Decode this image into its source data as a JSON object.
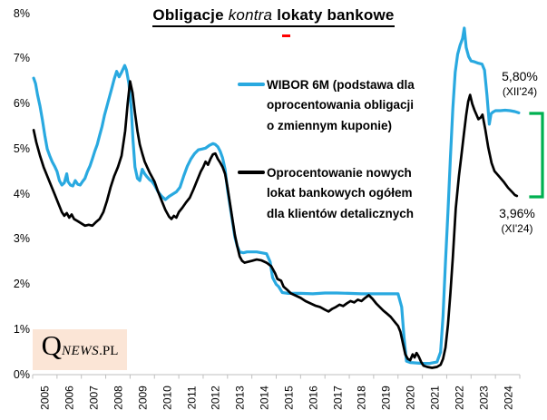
{
  "title": {
    "part1": "Obligacje",
    "part2": "kontra",
    "part3": "lokaty bankowe"
  },
  "legend": {
    "wibor": {
      "color": "#29A9E0",
      "label_lines": [
        "WIBOR 6M (podstawa dla",
        "oprocentowania obligacji",
        "o zmiennym kuponie)"
      ]
    },
    "deposits": {
      "color": "#000000",
      "label_lines": [
        "Oprocentowanie nowych",
        "lokat bankowych ogółem",
        "dla klientów detalicznych"
      ]
    }
  },
  "annotations": {
    "wibor_latest": {
      "value": "5,80%",
      "period": "(XII'24)"
    },
    "deposits_latest": {
      "value": "3,96%",
      "period": "(XI'24)"
    },
    "bracket_color": "#00B050"
  },
  "logo": {
    "q": "Q",
    "news": "NEWS",
    "suffix": ".PL",
    "background": "#FBE5D6"
  },
  "chart_data": {
    "type": "line",
    "title": "Obligacje kontra lokaty bankowe",
    "grid": false,
    "legend_position": "inside-top",
    "x_axis": {
      "labels": [
        "2005",
        "2006",
        "2007",
        "2008",
        "2009",
        "2010",
        "2011",
        "2012",
        "2013",
        "2014",
        "2015",
        "2016",
        "2017",
        "2018",
        "2019",
        "2020",
        "2021",
        "2022",
        "2023",
        "2024"
      ],
      "range": [
        2005,
        2025
      ]
    },
    "y_axis": {
      "labels": [
        "0%",
        "1%",
        "2%",
        "3%",
        "4%",
        "5%",
        "6%",
        "7%",
        "8%"
      ],
      "range": [
        0,
        8
      ],
      "unit": "%"
    },
    "axis_color": "#BFBFBF",
    "series": [
      {
        "name": "WIBOR 6M (podstawa dla oprocentowania obligacji o zmiennym kuponie)",
        "color": "#29A9E0",
        "last_value": 5.8,
        "points": [
          [
            2005.04,
            6.57
          ],
          [
            2005.12,
            6.45
          ],
          [
            2005.2,
            6.2
          ],
          [
            2005.3,
            5.95
          ],
          [
            2005.4,
            5.65
          ],
          [
            2005.5,
            5.3
          ],
          [
            2005.6,
            5.0
          ],
          [
            2005.7,
            4.85
          ],
          [
            2005.8,
            4.72
          ],
          [
            2005.9,
            4.62
          ],
          [
            2006.0,
            4.5
          ],
          [
            2006.1,
            4.3
          ],
          [
            2006.2,
            4.2
          ],
          [
            2006.3,
            4.25
          ],
          [
            2006.4,
            4.45
          ],
          [
            2006.45,
            4.28
          ],
          [
            2006.55,
            4.2
          ],
          [
            2006.65,
            4.18
          ],
          [
            2006.75,
            4.3
          ],
          [
            2006.85,
            4.22
          ],
          [
            2006.95,
            4.2
          ],
          [
            2007.05,
            4.28
          ],
          [
            2007.15,
            4.35
          ],
          [
            2007.25,
            4.5
          ],
          [
            2007.35,
            4.62
          ],
          [
            2007.45,
            4.78
          ],
          [
            2007.55,
            4.95
          ],
          [
            2007.65,
            5.1
          ],
          [
            2007.75,
            5.3
          ],
          [
            2007.85,
            5.5
          ],
          [
            2007.95,
            5.75
          ],
          [
            2008.05,
            5.95
          ],
          [
            2008.15,
            6.15
          ],
          [
            2008.25,
            6.35
          ],
          [
            2008.35,
            6.55
          ],
          [
            2008.45,
            6.72
          ],
          [
            2008.55,
            6.6
          ],
          [
            2008.65,
            6.7
          ],
          [
            2008.78,
            6.85
          ],
          [
            2008.85,
            6.75
          ],
          [
            2008.95,
            6.45
          ],
          [
            2009.05,
            5.9
          ],
          [
            2009.12,
            5.2
          ],
          [
            2009.2,
            4.6
          ],
          [
            2009.3,
            4.35
          ],
          [
            2009.4,
            4.3
          ],
          [
            2009.5,
            4.55
          ],
          [
            2009.6,
            4.45
          ],
          [
            2009.7,
            4.38
          ],
          [
            2009.8,
            4.32
          ],
          [
            2009.9,
            4.28
          ],
          [
            2010.0,
            4.2
          ],
          [
            2010.15,
            4.05
          ],
          [
            2010.3,
            3.95
          ],
          [
            2010.45,
            3.88
          ],
          [
            2010.6,
            3.95
          ],
          [
            2010.75,
            4.0
          ],
          [
            2010.9,
            4.05
          ],
          [
            2011.05,
            4.15
          ],
          [
            2011.2,
            4.4
          ],
          [
            2011.35,
            4.62
          ],
          [
            2011.5,
            4.78
          ],
          [
            2011.65,
            4.9
          ],
          [
            2011.8,
            4.98
          ],
          [
            2011.95,
            5.0
          ],
          [
            2012.1,
            5.02
          ],
          [
            2012.25,
            5.08
          ],
          [
            2012.4,
            5.12
          ],
          [
            2012.5,
            5.1
          ],
          [
            2012.6,
            5.05
          ],
          [
            2012.7,
            4.95
          ],
          [
            2012.8,
            4.8
          ],
          [
            2012.9,
            4.55
          ],
          [
            2013.0,
            4.1
          ],
          [
            2013.1,
            3.75
          ],
          [
            2013.2,
            3.4
          ],
          [
            2013.3,
            3.05
          ],
          [
            2013.4,
            2.85
          ],
          [
            2013.5,
            2.72
          ],
          [
            2013.65,
            2.7
          ],
          [
            2013.8,
            2.72
          ],
          [
            2014.0,
            2.72
          ],
          [
            2014.2,
            2.72
          ],
          [
            2014.4,
            2.7
          ],
          [
            2014.6,
            2.68
          ],
          [
            2014.75,
            2.5
          ],
          [
            2014.85,
            2.15
          ],
          [
            2015.0,
            2.0
          ],
          [
            2015.1,
            1.95
          ],
          [
            2015.25,
            1.82
          ],
          [
            2015.5,
            1.8
          ],
          [
            2016.0,
            1.8
          ],
          [
            2016.5,
            1.79
          ],
          [
            2017.0,
            1.81
          ],
          [
            2017.5,
            1.81
          ],
          [
            2018.0,
            1.8
          ],
          [
            2018.5,
            1.79
          ],
          [
            2019.0,
            1.79
          ],
          [
            2019.5,
            1.79
          ],
          [
            2020.0,
            1.79
          ],
          [
            2020.15,
            1.5
          ],
          [
            2020.25,
            0.8
          ],
          [
            2020.35,
            0.3
          ],
          [
            2020.5,
            0.27
          ],
          [
            2020.75,
            0.26
          ],
          [
            2021.0,
            0.25
          ],
          [
            2021.3,
            0.25
          ],
          [
            2021.6,
            0.28
          ],
          [
            2021.75,
            0.5
          ],
          [
            2021.85,
            1.3
          ],
          [
            2021.95,
            2.5
          ],
          [
            2022.05,
            3.6
          ],
          [
            2022.15,
            4.8
          ],
          [
            2022.25,
            5.9
          ],
          [
            2022.35,
            6.7
          ],
          [
            2022.45,
            7.1
          ],
          [
            2022.55,
            7.3
          ],
          [
            2022.65,
            7.45
          ],
          [
            2022.72,
            7.68
          ],
          [
            2022.8,
            7.25
          ],
          [
            2022.9,
            7.05
          ],
          [
            2023.0,
            6.95
          ],
          [
            2023.15,
            6.93
          ],
          [
            2023.3,
            6.9
          ],
          [
            2023.45,
            6.88
          ],
          [
            2023.55,
            6.75
          ],
          [
            2023.65,
            6.2
          ],
          [
            2023.75,
            5.55
          ],
          [
            2023.82,
            5.78
          ],
          [
            2023.9,
            5.82
          ],
          [
            2024.0,
            5.85
          ],
          [
            2024.2,
            5.85
          ],
          [
            2024.4,
            5.86
          ],
          [
            2024.6,
            5.85
          ],
          [
            2024.8,
            5.83
          ],
          [
            2024.96,
            5.8
          ]
        ]
      },
      {
        "name": "Oprocentowanie nowych lokat bankowych ogółem dla klientów detalicznych",
        "color": "#000000",
        "last_value": 3.96,
        "points": [
          [
            2005.04,
            5.42
          ],
          [
            2005.15,
            5.15
          ],
          [
            2005.3,
            4.85
          ],
          [
            2005.45,
            4.6
          ],
          [
            2005.6,
            4.4
          ],
          [
            2005.75,
            4.2
          ],
          [
            2005.9,
            4.0
          ],
          [
            2006.05,
            3.8
          ],
          [
            2006.2,
            3.6
          ],
          [
            2006.3,
            3.52
          ],
          [
            2006.4,
            3.58
          ],
          [
            2006.5,
            3.48
          ],
          [
            2006.6,
            3.55
          ],
          [
            2006.7,
            3.45
          ],
          [
            2006.85,
            3.4
          ],
          [
            2007.0,
            3.35
          ],
          [
            2007.15,
            3.3
          ],
          [
            2007.3,
            3.32
          ],
          [
            2007.45,
            3.3
          ],
          [
            2007.6,
            3.38
          ],
          [
            2007.75,
            3.45
          ],
          [
            2007.9,
            3.6
          ],
          [
            2008.05,
            3.85
          ],
          [
            2008.2,
            4.15
          ],
          [
            2008.35,
            4.4
          ],
          [
            2008.5,
            4.6
          ],
          [
            2008.65,
            4.85
          ],
          [
            2008.8,
            5.4
          ],
          [
            2008.9,
            6.0
          ],
          [
            2009.0,
            6.5
          ],
          [
            2009.1,
            6.25
          ],
          [
            2009.2,
            5.8
          ],
          [
            2009.3,
            5.4
          ],
          [
            2009.4,
            5.1
          ],
          [
            2009.5,
            4.9
          ],
          [
            2009.6,
            4.72
          ],
          [
            2009.7,
            4.6
          ],
          [
            2009.8,
            4.48
          ],
          [
            2009.9,
            4.38
          ],
          [
            2010.0,
            4.28
          ],
          [
            2010.15,
            4.05
          ],
          [
            2010.3,
            3.85
          ],
          [
            2010.45,
            3.65
          ],
          [
            2010.6,
            3.5
          ],
          [
            2010.7,
            3.45
          ],
          [
            2010.8,
            3.52
          ],
          [
            2010.9,
            3.48
          ],
          [
            2011.0,
            3.6
          ],
          [
            2011.15,
            3.7
          ],
          [
            2011.3,
            3.82
          ],
          [
            2011.45,
            3.92
          ],
          [
            2011.6,
            4.1
          ],
          [
            2011.75,
            4.3
          ],
          [
            2011.9,
            4.5
          ],
          [
            2012.0,
            4.6
          ],
          [
            2012.1,
            4.72
          ],
          [
            2012.2,
            4.65
          ],
          [
            2012.3,
            4.78
          ],
          [
            2012.4,
            4.88
          ],
          [
            2012.5,
            4.9
          ],
          [
            2012.6,
            4.78
          ],
          [
            2012.7,
            4.7
          ],
          [
            2012.8,
            4.6
          ],
          [
            2012.9,
            4.45
          ],
          [
            2013.0,
            4.15
          ],
          [
            2013.1,
            3.8
          ],
          [
            2013.2,
            3.45
          ],
          [
            2013.3,
            3.1
          ],
          [
            2013.4,
            2.85
          ],
          [
            2013.5,
            2.62
          ],
          [
            2013.6,
            2.52
          ],
          [
            2013.7,
            2.48
          ],
          [
            2013.85,
            2.5
          ],
          [
            2014.0,
            2.52
          ],
          [
            2014.2,
            2.55
          ],
          [
            2014.4,
            2.53
          ],
          [
            2014.6,
            2.48
          ],
          [
            2014.8,
            2.4
          ],
          [
            2014.95,
            2.25
          ],
          [
            2015.05,
            2.12
          ],
          [
            2015.2,
            2.08
          ],
          [
            2015.3,
            1.95
          ],
          [
            2015.45,
            1.88
          ],
          [
            2015.6,
            1.8
          ],
          [
            2015.8,
            1.75
          ],
          [
            2016.0,
            1.7
          ],
          [
            2016.2,
            1.63
          ],
          [
            2016.4,
            1.58
          ],
          [
            2016.6,
            1.53
          ],
          [
            2016.8,
            1.5
          ],
          [
            2017.0,
            1.44
          ],
          [
            2017.15,
            1.4
          ],
          [
            2017.3,
            1.46
          ],
          [
            2017.45,
            1.5
          ],
          [
            2017.6,
            1.55
          ],
          [
            2017.75,
            1.52
          ],
          [
            2017.9,
            1.58
          ],
          [
            2018.05,
            1.63
          ],
          [
            2018.2,
            1.6
          ],
          [
            2018.35,
            1.66
          ],
          [
            2018.5,
            1.63
          ],
          [
            2018.65,
            1.7
          ],
          [
            2018.8,
            1.76
          ],
          [
            2018.95,
            1.68
          ],
          [
            2019.1,
            1.58
          ],
          [
            2019.25,
            1.5
          ],
          [
            2019.4,
            1.42
          ],
          [
            2019.55,
            1.35
          ],
          [
            2019.7,
            1.28
          ],
          [
            2019.85,
            1.18
          ],
          [
            2020.0,
            1.08
          ],
          [
            2020.1,
            0.95
          ],
          [
            2020.2,
            0.7
          ],
          [
            2020.3,
            0.45
          ],
          [
            2020.4,
            0.35
          ],
          [
            2020.5,
            0.32
          ],
          [
            2020.6,
            0.45
          ],
          [
            2020.68,
            0.38
          ],
          [
            2020.76,
            0.48
          ],
          [
            2020.85,
            0.4
          ],
          [
            2020.95,
            0.28
          ],
          [
            2021.05,
            0.2
          ],
          [
            2021.2,
            0.17
          ],
          [
            2021.4,
            0.15
          ],
          [
            2021.6,
            0.17
          ],
          [
            2021.75,
            0.22
          ],
          [
            2021.85,
            0.35
          ],
          [
            2021.95,
            0.6
          ],
          [
            2022.05,
            1.1
          ],
          [
            2022.15,
            1.8
          ],
          [
            2022.25,
            2.6
          ],
          [
            2022.37,
            3.68
          ],
          [
            2022.5,
            4.4
          ],
          [
            2022.6,
            4.85
          ],
          [
            2022.7,
            5.3
          ],
          [
            2022.8,
            5.75
          ],
          [
            2022.88,
            6.05
          ],
          [
            2022.96,
            6.2
          ],
          [
            2023.05,
            6.0
          ],
          [
            2023.14,
            5.86
          ],
          [
            2023.3,
            5.66
          ],
          [
            2023.4,
            5.7
          ],
          [
            2023.47,
            5.76
          ],
          [
            2023.59,
            5.42
          ],
          [
            2023.7,
            5.05
          ],
          [
            2023.84,
            4.69
          ],
          [
            2023.96,
            4.51
          ],
          [
            2024.14,
            4.4
          ],
          [
            2024.33,
            4.28
          ],
          [
            2024.52,
            4.14
          ],
          [
            2024.7,
            4.04
          ],
          [
            2024.8,
            3.98
          ],
          [
            2024.88,
            3.96
          ]
        ]
      }
    ]
  }
}
